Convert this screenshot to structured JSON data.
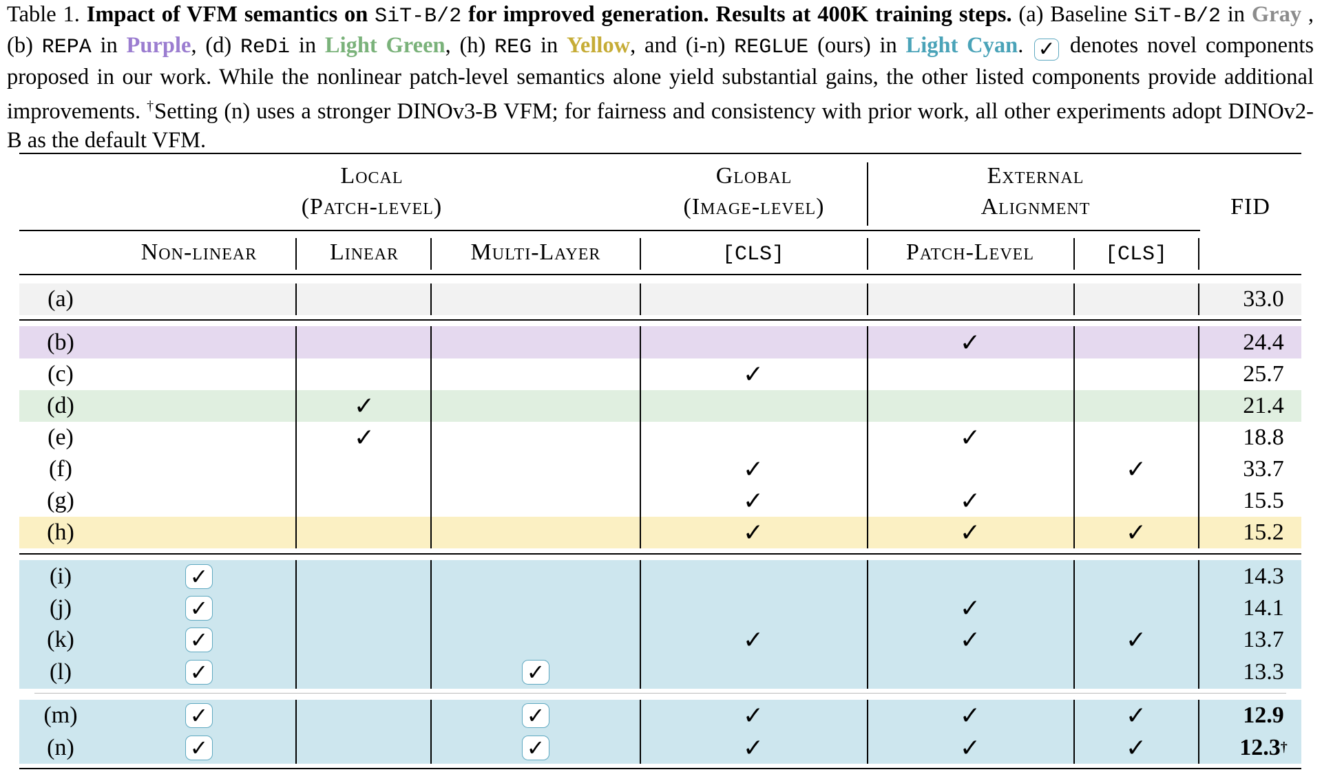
{
  "caption": {
    "prefix": "Table 1.",
    "bold_part1": "Impact of VFM semantics on",
    "model": "SiT-B/2",
    "bold_part2": "for improved generation. Results at 400K training steps.",
    "t1": "(a) Baseline",
    "t2": "in",
    "gray": "Gray",
    "t3": ", (b)",
    "repa": "REPA",
    "t4": "in",
    "purple": "Purple",
    "t5": ", (d)",
    "redi": "ReDi",
    "t6": "in",
    "green": "Light Green",
    "t7": ", (h)",
    "reg": "REG",
    "t8": "in",
    "yellow": "Yellow",
    "t9": ", and (i-n)",
    "reglue": "REGLUE",
    "t10": "(ours) in",
    "cyan": "Light Cyan",
    "t11": ".",
    "check": "✓",
    "t12": "denotes novel components proposed in our work. While the nonlinear patch-level semantics alone yield substantial gains, the other listed components provide additional improvements.",
    "dagger": "†",
    "t13": "Setting (n) uses a stronger DINOv3-B VFM; for fairness and consistency with prior work, all other experiments adopt DINOv2-B as the default VFM."
  },
  "header": {
    "local_line1": "Local",
    "local_line2": "(Patch-level)",
    "global_line1": "Global",
    "global_line2": "(Image-level)",
    "external_line1": "External",
    "external_line2": "Alignment",
    "fid": "FID",
    "nonlinear": "Non-linear",
    "linear": "Linear",
    "multilayer": "Multi-Layer",
    "cls_global": "[CLS]",
    "patch_level": "Patch-Level",
    "cls_external": "[CLS]"
  },
  "colors": {
    "gray": "#f2f2f2",
    "purple": "#e5d9ef",
    "green": "#e0efe0",
    "yellow": "#fbf0c3",
    "cyan": "#cde6ee"
  },
  "check_symbol": "✓",
  "rows": [
    {
      "label": "(a)",
      "fid": "33.0"
    },
    {
      "label": "(b)",
      "fid": "24.4"
    },
    {
      "label": "(c)",
      "fid": "25.7"
    },
    {
      "label": "(d)",
      "fid": "21.4"
    },
    {
      "label": "(e)",
      "fid": "18.8"
    },
    {
      "label": "(f)",
      "fid": "33.7"
    },
    {
      "label": "(g)",
      "fid": "15.5"
    },
    {
      "label": "(h)",
      "fid": "15.2"
    },
    {
      "label": "(i)",
      "fid": "14.3"
    },
    {
      "label": "(j)",
      "fid": "14.1"
    },
    {
      "label": "(k)",
      "fid": "13.7"
    },
    {
      "label": "(l)",
      "fid": "13.3"
    },
    {
      "label": "(m)",
      "fid": "12.9"
    },
    {
      "label": "(n)",
      "fid": "12.3",
      "fid_sup": "†"
    }
  ]
}
